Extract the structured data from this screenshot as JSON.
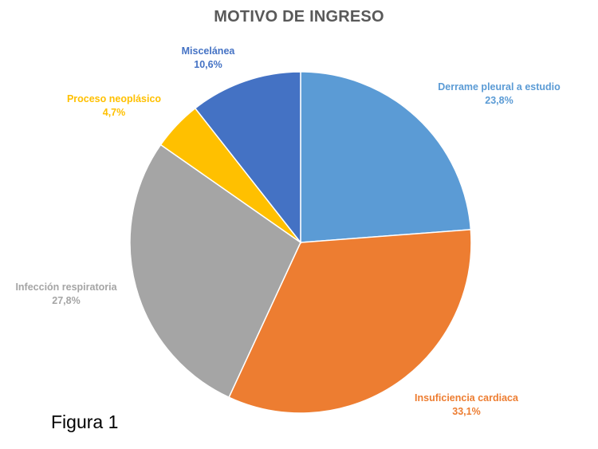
{
  "chart_data": {
    "type": "pie",
    "title": "MOTIVO DE INGRESO",
    "slices": [
      {
        "label": "Derrame pleural a estudio",
        "value": 23.8,
        "value_label": "23,8%",
        "color": "#5B9BD5"
      },
      {
        "label": "Insuficiencia cardiaca",
        "value": 33.1,
        "value_label": "33,1%",
        "color": "#ED7D31"
      },
      {
        "label": "Infección respiratoria",
        "value": 27.8,
        "value_label": "27,8%",
        "color": "#A5A5A5"
      },
      {
        "label": "Proceso neoplásico",
        "value": 4.7,
        "value_label": "4,7%",
        "color": "#FFC000"
      },
      {
        "label": "Miscelánea",
        "value": 10.6,
        "value_label": "10,6%",
        "color": "#4472C4"
      }
    ]
  },
  "caption": "Figura 1"
}
